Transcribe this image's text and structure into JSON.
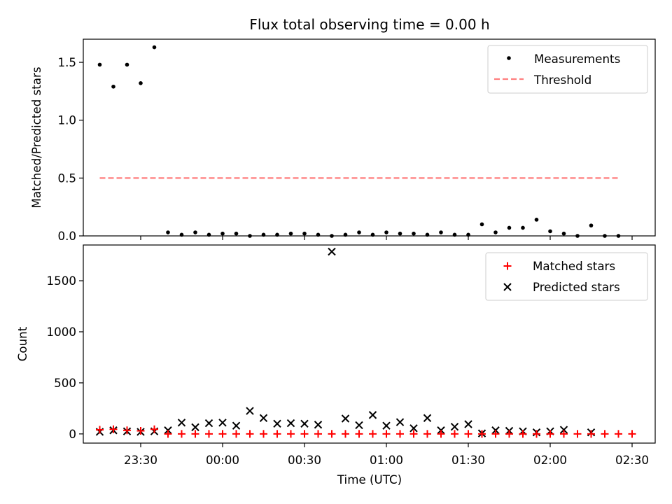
{
  "figure": {
    "title": "Flux total observing time = 0.00 h",
    "xlabel": "Time (UTC)",
    "x_ticks": [
      "23:30",
      "00:00",
      "00:30",
      "01:00",
      "01:30",
      "02:00",
      "02:30"
    ]
  },
  "colors": {
    "threshold": "#ff7f7f",
    "matched": "#ff0000",
    "predicted": "#000000",
    "measurement": "#000000"
  },
  "chart_data": [
    {
      "type": "scatter",
      "ylabel": "Matched/Predicted stars",
      "ylim": [
        0,
        1.7
      ],
      "y_ticks": [
        "0.0",
        "0.5",
        "1.0",
        "1.5"
      ],
      "legend": {
        "placement": "top-right",
        "entries": [
          "Measurements",
          "Threshold"
        ]
      },
      "x": [
        "23:15",
        "23:20",
        "23:25",
        "23:30",
        "23:35",
        "23:40",
        "23:45",
        "23:50",
        "23:55",
        "00:00",
        "00:05",
        "00:10",
        "00:15",
        "00:20",
        "00:25",
        "00:30",
        "00:35",
        "00:40",
        "00:45",
        "00:50",
        "00:55",
        "01:00",
        "01:05",
        "01:10",
        "01:15",
        "01:20",
        "01:25",
        "01:30",
        "01:35",
        "01:40",
        "01:45",
        "01:50",
        "01:55",
        "02:00",
        "02:05",
        "02:10",
        "02:15",
        "02:20",
        "02:25",
        "02:30"
      ],
      "series": [
        {
          "name": "Measurements",
          "values": [
            1.48,
            1.29,
            1.48,
            1.32,
            1.63,
            0.03,
            0.01,
            0.03,
            0.01,
            0.02,
            0.02,
            0.0,
            0.01,
            0.01,
            0.02,
            0.02,
            0.01,
            0.0,
            0.01,
            0.03,
            0.01,
            0.03,
            0.02,
            0.02,
            0.01,
            0.03,
            0.01,
            0.01,
            0.1,
            0.03,
            0.07,
            0.07,
            0.14,
            0.04,
            0.02,
            0.0,
            0.09,
            0.0,
            0.0,
            null
          ]
        },
        {
          "name": "Threshold",
          "line": {
            "from": "23:15",
            "to": "02:25",
            "value": 0.5
          }
        }
      ]
    },
    {
      "type": "scatter",
      "ylabel": "Count",
      "ylim": [
        -90,
        1850
      ],
      "y_ticks": [
        "0",
        "500",
        "1000",
        "1500"
      ],
      "legend": {
        "placement": "top-right",
        "entries": [
          "Matched stars",
          "Predicted stars"
        ]
      },
      "x": [
        "23:15",
        "23:20",
        "23:25",
        "23:30",
        "23:35",
        "23:40",
        "23:45",
        "23:50",
        "23:55",
        "00:00",
        "00:05",
        "00:10",
        "00:15",
        "00:20",
        "00:25",
        "00:30",
        "00:35",
        "00:40",
        "00:45",
        "00:50",
        "00:55",
        "01:00",
        "01:05",
        "01:10",
        "01:15",
        "01:20",
        "01:25",
        "01:30",
        "01:35",
        "01:40",
        "01:45",
        "01:50",
        "01:55",
        "02:00",
        "02:05",
        "02:10",
        "02:15",
        "02:20",
        "02:25",
        "02:30"
      ],
      "series": [
        {
          "name": "Matched stars",
          "values": [
            40,
            45,
            35,
            30,
            45,
            0,
            0,
            0,
            0,
            0,
            0,
            0,
            0,
            0,
            0,
            0,
            0,
            0,
            0,
            0,
            0,
            0,
            0,
            0,
            0,
            0,
            0,
            0,
            0,
            0,
            0,
            0,
            0,
            0,
            0,
            0,
            0,
            0,
            0,
            0
          ]
        },
        {
          "name": "Predicted stars",
          "values": [
            20,
            35,
            25,
            20,
            25,
            35,
            110,
            65,
            105,
            110,
            80,
            225,
            155,
            100,
            105,
            100,
            90,
            1785,
            150,
            85,
            185,
            80,
            115,
            55,
            155,
            35,
            70,
            95,
            5,
            35,
            30,
            25,
            15,
            25,
            40,
            null,
            15,
            null,
            null,
            null
          ]
        }
      ]
    }
  ]
}
